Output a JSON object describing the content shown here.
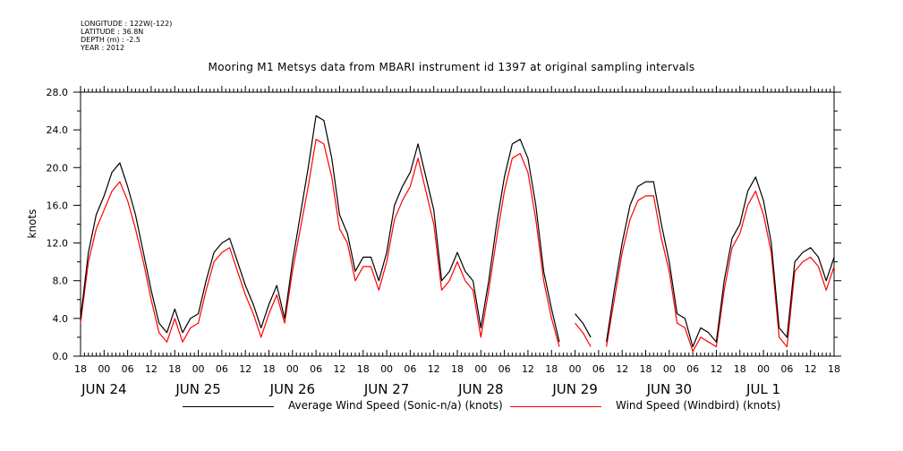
{
  "header": {
    "longitude": "LONGITUDE : 122W(-122)",
    "latitude": "LATITUDE : 36.8N",
    "depth": "DEPTH (m) : -2.5",
    "year": "YEAR : 2012"
  },
  "colors": {
    "series1": "#000000",
    "series2": "#ff0000"
  },
  "chart_data": {
    "type": "line",
    "title": "Mooring M1 Metsys data from MBARI instrument id 1397 at original sampling intervals",
    "ylabel": "knots",
    "xlabel": "",
    "ylim": [
      0,
      28
    ],
    "yticks": [
      0,
      4,
      8,
      12,
      16,
      20,
      24,
      28
    ],
    "ytick_labels": [
      "0.0",
      "4.0",
      "8.0",
      "12.0",
      "16.0",
      "20.0",
      "24.0",
      "28.0"
    ],
    "xlim": [
      "2012-06-23T18:00",
      "2012-07-01T18:00"
    ],
    "xtick_hours": [
      "18",
      "00",
      "06",
      "12",
      "18",
      "00",
      "06",
      "12",
      "18",
      "00",
      "06",
      "12",
      "18",
      "00",
      "06",
      "12",
      "18",
      "00",
      "06",
      "12",
      "18",
      "00",
      "06",
      "12",
      "18",
      "00",
      "06",
      "12",
      "18",
      "00",
      "06",
      "12",
      "18"
    ],
    "date_labels": [
      {
        "text": "JUN 24",
        "x": "2012-06-24T00:00"
      },
      {
        "text": "JUN 25",
        "x": "2012-06-25T00:00"
      },
      {
        "text": "JUN 26",
        "x": "2012-06-26T00:00"
      },
      {
        "text": "JUN 27",
        "x": "2012-06-27T00:00"
      },
      {
        "text": "JUN 28",
        "x": "2012-06-28T00:00"
      },
      {
        "text": "JUN 29",
        "x": "2012-06-29T00:00"
      },
      {
        "text": "JUN 30",
        "x": "2012-06-30T00:00"
      },
      {
        "text": "JUL  1",
        "x": "2012-07-01T00:00"
      }
    ],
    "x": [
      "2012-06-23T18:00",
      "2012-06-23T20:00",
      "2012-06-23T22:00",
      "2012-06-24T00:00",
      "2012-06-24T02:00",
      "2012-06-24T04:00",
      "2012-06-24T06:00",
      "2012-06-24T08:00",
      "2012-06-24T10:00",
      "2012-06-24T12:00",
      "2012-06-24T14:00",
      "2012-06-24T16:00",
      "2012-06-24T18:00",
      "2012-06-24T20:00",
      "2012-06-24T22:00",
      "2012-06-25T00:00",
      "2012-06-25T02:00",
      "2012-06-25T04:00",
      "2012-06-25T06:00",
      "2012-06-25T08:00",
      "2012-06-25T10:00",
      "2012-06-25T12:00",
      "2012-06-25T14:00",
      "2012-06-25T16:00",
      "2012-06-25T18:00",
      "2012-06-25T20:00",
      "2012-06-25T22:00",
      "2012-06-26T00:00",
      "2012-06-26T02:00",
      "2012-06-26T04:00",
      "2012-06-26T06:00",
      "2012-06-26T08:00",
      "2012-06-26T10:00",
      "2012-06-26T12:00",
      "2012-06-26T14:00",
      "2012-06-26T16:00",
      "2012-06-26T18:00",
      "2012-06-26T20:00",
      "2012-06-26T22:00",
      "2012-06-27T00:00",
      "2012-06-27T02:00",
      "2012-06-27T04:00",
      "2012-06-27T06:00",
      "2012-06-27T08:00",
      "2012-06-27T10:00",
      "2012-06-27T12:00",
      "2012-06-27T14:00",
      "2012-06-27T16:00",
      "2012-06-27T18:00",
      "2012-06-27T20:00",
      "2012-06-27T22:00",
      "2012-06-28T00:00",
      "2012-06-28T02:00",
      "2012-06-28T04:00",
      "2012-06-28T06:00",
      "2012-06-28T08:00",
      "2012-06-28T10:00",
      "2012-06-28T12:00",
      "2012-06-28T14:00",
      "2012-06-28T16:00",
      "2012-06-28T18:00",
      "2012-06-28T20:00",
      "2012-06-28T22:00",
      "2012-06-29T00:00",
      "2012-06-29T02:00",
      "2012-06-29T04:00",
      "2012-06-29T06:00",
      "2012-06-29T08:00",
      "2012-06-29T10:00",
      "2012-06-29T12:00",
      "2012-06-29T14:00",
      "2012-06-29T16:00",
      "2012-06-29T18:00",
      "2012-06-29T20:00",
      "2012-06-29T22:00",
      "2012-06-30T00:00",
      "2012-06-30T02:00",
      "2012-06-30T04:00",
      "2012-06-30T06:00",
      "2012-06-30T08:00",
      "2012-06-30T10:00",
      "2012-06-30T12:00",
      "2012-06-30T14:00",
      "2012-06-30T16:00",
      "2012-06-30T18:00",
      "2012-06-30T20:00",
      "2012-06-30T22:00",
      "2012-07-01T00:00",
      "2012-07-01T02:00",
      "2012-07-01T04:00",
      "2012-07-01T06:00",
      "2012-07-01T08:00",
      "2012-07-01T10:00",
      "2012-07-01T12:00",
      "2012-07-01T14:00",
      "2012-07-01T16:00",
      "2012-07-01T18:00"
    ],
    "series": [
      {
        "name": "Average Wind Speed (Sonic-n/a) (knots)",
        "values": [
          4.0,
          11.0,
          15.0,
          17.0,
          19.5,
          20.5,
          18.0,
          15.0,
          11.0,
          7.0,
          3.5,
          2.5,
          5.0,
          2.5,
          4.0,
          4.5,
          8.0,
          11.0,
          12.0,
          12.5,
          10.0,
          7.5,
          5.5,
          3.0,
          5.5,
          7.5,
          4.0,
          10.0,
          15.0,
          20.0,
          25.5,
          25.0,
          21.0,
          15.0,
          13.0,
          9.0,
          10.5,
          10.5,
          8.0,
          11.0,
          16.0,
          18.0,
          19.5,
          22.5,
          19.0,
          15.5,
          8.0,
          9.0,
          11.0,
          9.0,
          8.0,
          3.0,
          8.0,
          14.0,
          19.0,
          22.5,
          23.0,
          21.0,
          16.0,
          9.0,
          5.0,
          1.5,
          null,
          4.5,
          3.5,
          2.0,
          null,
          1.5,
          7.0,
          12.0,
          16.0,
          18.0,
          18.5,
          18.5,
          14.0,
          10.0,
          4.5,
          4.0,
          1.0,
          3.0,
          2.5,
          1.5,
          8.0,
          12.5,
          14.0,
          17.5,
          19.0,
          16.5,
          12.0,
          3.0,
          2.0,
          10.0,
          11.0,
          11.5,
          10.5,
          8.0,
          10.5
        ]
      },
      {
        "name": "Wind Speed (Windbird) (knots)",
        "values": [
          3.5,
          10.0,
          13.5,
          15.5,
          17.5,
          18.5,
          16.5,
          13.5,
          10.0,
          6.0,
          2.5,
          1.5,
          4.0,
          1.5,
          3.0,
          3.5,
          7.0,
          10.0,
          11.0,
          11.5,
          9.0,
          6.5,
          4.5,
          2.0,
          4.5,
          6.5,
          3.5,
          9.0,
          13.5,
          18.0,
          23.0,
          22.5,
          19.0,
          13.5,
          12.0,
          8.0,
          9.5,
          9.5,
          7.0,
          10.0,
          14.5,
          16.5,
          18.0,
          21.0,
          17.5,
          14.0,
          7.0,
          8.0,
          10.0,
          8.0,
          7.0,
          2.0,
          7.0,
          12.5,
          17.5,
          21.0,
          21.5,
          19.5,
          14.5,
          8.0,
          4.0,
          1.0,
          null,
          3.5,
          2.5,
          1.0,
          null,
          1.0,
          6.0,
          11.0,
          14.5,
          16.5,
          17.0,
          17.0,
          12.5,
          9.0,
          3.5,
          3.0,
          0.5,
          2.0,
          1.5,
          1.0,
          7.0,
          11.5,
          13.0,
          16.0,
          17.5,
          15.0,
          11.0,
          2.0,
          1.0,
          9.0,
          10.0,
          10.5,
          9.5,
          7.0,
          9.5
        ]
      }
    ],
    "grid": false,
    "legend": "bottom"
  }
}
